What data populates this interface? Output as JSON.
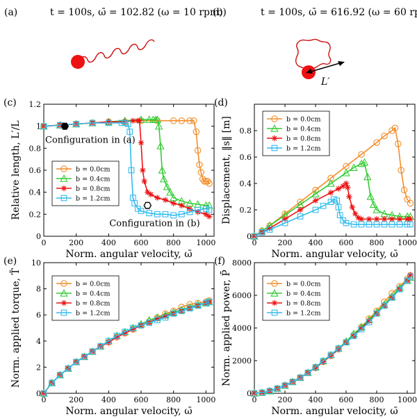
{
  "colors": {
    "b00": "#F28C28",
    "b04": "#33CC33",
    "b08": "#EE1111",
    "b12": "#33BBEE",
    "ball": "#EE1111",
    "rod": "#CC1111",
    "axis": "#000000"
  },
  "panel_a": {
    "label": "(a)",
    "caption": "t = 100s, ω̄ = 102.82 (ω = 10 rpm)"
  },
  "panel_b": {
    "label": "(b)",
    "caption": "t = 100s, ω̄ = 616.92 (ω = 60 rpm)",
    "length_label": "L′"
  },
  "chart_data": [
    {
      "id": "c",
      "type": "line",
      "panel_label": "(c)",
      "xlabel": "Norm. angular velocity, ω̄",
      "ylabel": "Relative length, L′/L",
      "xlim": [
        0,
        1050
      ],
      "ylim": [
        0,
        1.2
      ],
      "xticks": [
        0,
        200,
        400,
        600,
        800,
        1000
      ],
      "yticks": [
        0,
        0.2,
        0.4,
        0.6,
        0.8,
        1,
        1.2
      ],
      "legend_position": "left",
      "annotations": [
        {
          "text": "Configuration in (a)",
          "x": 130,
          "y": 1.0
        },
        {
          "text": "Configuration in (b)",
          "x": 640,
          "y": 0.28
        }
      ],
      "series": [
        {
          "name": "b = 0.0cm",
          "color_key": "b00",
          "marker": "circle",
          "x": [
            0,
            100,
            200,
            300,
            400,
            500,
            600,
            700,
            800,
            850,
            900,
            925,
            940,
            950,
            960,
            970,
            980,
            990,
            1000,
            1010,
            1020
          ],
          "y": [
            1.0,
            1.01,
            1.02,
            1.03,
            1.04,
            1.04,
            1.05,
            1.05,
            1.05,
            1.05,
            1.05,
            1.05,
            0.95,
            0.78,
            0.65,
            0.58,
            0.52,
            0.5,
            0.5,
            0.5,
            0.48
          ]
        },
        {
          "name": "b = 0.4cm",
          "color_key": "b04",
          "marker": "triangle",
          "x": [
            0,
            100,
            200,
            300,
            400,
            500,
            600,
            650,
            675,
            690,
            700,
            710,
            720,
            730,
            740,
            760,
            780,
            800,
            850,
            900,
            950,
            1000,
            1020
          ],
          "y": [
            1.0,
            1.01,
            1.02,
            1.03,
            1.04,
            1.05,
            1.06,
            1.06,
            1.06,
            1.06,
            1.06,
            1.0,
            0.82,
            0.6,
            0.52,
            0.45,
            0.4,
            0.35,
            0.32,
            0.3,
            0.29,
            0.28,
            0.28
          ]
        },
        {
          "name": "b = 0.8cm",
          "color_key": "b08",
          "marker": "star",
          "x": [
            0,
            100,
            200,
            300,
            400,
            500,
            550,
            580,
            590,
            600,
            610,
            620,
            640,
            660,
            700,
            750,
            800,
            850,
            900,
            950,
            1000,
            1020
          ],
          "y": [
            1.0,
            1.01,
            1.02,
            1.03,
            1.04,
            1.04,
            1.05,
            1.05,
            1.05,
            0.85,
            0.6,
            0.5,
            0.4,
            0.38,
            0.35,
            0.33,
            0.3,
            0.28,
            0.25,
            0.22,
            0.2,
            0.18
          ]
        },
        {
          "name": "b = 1.2cm",
          "color_key": "b12",
          "marker": "square",
          "x": [
            0,
            100,
            200,
            300,
            400,
            480,
            500,
            520,
            530,
            540,
            550,
            560,
            580,
            600,
            650,
            700,
            750,
            800,
            850,
            900,
            950,
            1000,
            1020
          ],
          "y": [
            1.0,
            1.01,
            1.02,
            1.03,
            1.03,
            1.03,
            1.03,
            1.02,
            0.95,
            0.6,
            0.35,
            0.3,
            0.25,
            0.23,
            0.21,
            0.2,
            0.2,
            0.19,
            0.2,
            0.22,
            0.24,
            0.25,
            0.24
          ]
        }
      ]
    },
    {
      "id": "d",
      "type": "line",
      "panel_label": "(d)",
      "xlabel": "Norm. angular velocity, ω̄",
      "ylabel": "Displacement, ‖s‖ [m]",
      "xlim": [
        0,
        1050
      ],
      "ylim": [
        0,
        1.0
      ],
      "xticks": [
        0,
        200,
        400,
        600,
        800,
        1000
      ],
      "yticks": [
        0,
        0.2,
        0.4,
        0.6,
        0.8
      ],
      "legend_position": "top-left",
      "series": [
        {
          "name": "b = 0.0cm",
          "color_key": "b00",
          "marker": "circle",
          "x": [
            0,
            50,
            100,
            200,
            300,
            400,
            500,
            600,
            700,
            800,
            850,
            900,
            920,
            940,
            960,
            980,
            1000,
            1020
          ],
          "y": [
            0,
            0.04,
            0.08,
            0.17,
            0.26,
            0.35,
            0.44,
            0.53,
            0.62,
            0.71,
            0.76,
            0.8,
            0.82,
            0.7,
            0.5,
            0.35,
            0.28,
            0.25
          ]
        },
        {
          "name": "b = 0.4cm",
          "color_key": "b04",
          "marker": "triangle",
          "x": [
            0,
            50,
            100,
            200,
            300,
            400,
            500,
            600,
            650,
            700,
            720,
            740,
            760,
            780,
            800,
            850,
            900,
            950,
            1000,
            1020
          ],
          "y": [
            0,
            0.04,
            0.08,
            0.16,
            0.24,
            0.32,
            0.4,
            0.48,
            0.52,
            0.55,
            0.56,
            0.45,
            0.3,
            0.24,
            0.2,
            0.17,
            0.16,
            0.15,
            0.15,
            0.15
          ]
        },
        {
          "name": "b = 0.8cm",
          "color_key": "b08",
          "marker": "star",
          "x": [
            0,
            50,
            100,
            200,
            300,
            400,
            500,
            550,
            580,
            600,
            610,
            620,
            640,
            660,
            680,
            700,
            750,
            800,
            850,
            900,
            950,
            1000,
            1020
          ],
          "y": [
            0,
            0.03,
            0.06,
            0.13,
            0.2,
            0.27,
            0.33,
            0.36,
            0.38,
            0.4,
            0.37,
            0.3,
            0.22,
            0.17,
            0.14,
            0.13,
            0.13,
            0.13,
            0.13,
            0.13,
            0.13,
            0.13,
            0.13
          ]
        },
        {
          "name": "b = 1.2cm",
          "color_key": "b12",
          "marker": "square",
          "x": [
            0,
            50,
            100,
            200,
            300,
            400,
            450,
            500,
            520,
            540,
            550,
            560,
            580,
            600,
            650,
            700,
            750,
            800,
            850,
            900,
            950,
            1000,
            1020
          ],
          "y": [
            0,
            0.03,
            0.05,
            0.1,
            0.15,
            0.2,
            0.23,
            0.26,
            0.28,
            0.27,
            0.22,
            0.16,
            0.12,
            0.1,
            0.09,
            0.09,
            0.09,
            0.09,
            0.09,
            0.09,
            0.09,
            0.09,
            0.09
          ]
        }
      ]
    },
    {
      "id": "e",
      "type": "line",
      "panel_label": "(e)",
      "xlabel": "Norm. angular velocity, ω̄",
      "ylabel": "Norm. applied torque, T̄",
      "xlim": [
        0,
        1050
      ],
      "ylim": [
        0,
        10
      ],
      "xticks": [
        0,
        200,
        400,
        600,
        800,
        1000
      ],
      "yticks": [
        0,
        2,
        4,
        6,
        8,
        10
      ],
      "legend_position": "top-left",
      "series": [
        {
          "name": "b = 0.0cm",
          "color_key": "b00",
          "marker": "circle",
          "x": [
            0,
            50,
            100,
            150,
            200,
            250,
            300,
            350,
            400,
            450,
            500,
            550,
            600,
            650,
            700,
            750,
            800,
            850,
            900,
            950,
            1000,
            1020
          ],
          "y": [
            0,
            0.8,
            1.4,
            1.9,
            2.4,
            2.8,
            3.2,
            3.6,
            3.9,
            4.3,
            4.6,
            4.9,
            5.2,
            5.5,
            5.8,
            6.1,
            6.3,
            6.6,
            6.8,
            6.9,
            7.0,
            7.1
          ]
        },
        {
          "name": "b = 0.4cm",
          "color_key": "b04",
          "marker": "triangle",
          "x": [
            0,
            50,
            100,
            150,
            200,
            250,
            300,
            350,
            400,
            450,
            500,
            550,
            600,
            650,
            700,
            750,
            800,
            850,
            900,
            950,
            1000,
            1020
          ],
          "y": [
            0,
            0.8,
            1.4,
            1.9,
            2.4,
            2.8,
            3.2,
            3.6,
            4.0,
            4.4,
            4.7,
            5.0,
            5.3,
            5.6,
            5.8,
            6.0,
            6.2,
            6.4,
            6.6,
            6.8,
            6.9,
            7.0
          ]
        },
        {
          "name": "b = 0.8cm",
          "color_key": "b08",
          "marker": "star",
          "x": [
            0,
            50,
            100,
            150,
            200,
            250,
            300,
            350,
            400,
            450,
            500,
            550,
            600,
            650,
            700,
            750,
            800,
            850,
            900,
            950,
            1000,
            1020
          ],
          "y": [
            0,
            0.8,
            1.4,
            1.9,
            2.4,
            2.8,
            3.2,
            3.6,
            3.9,
            4.3,
            4.6,
            4.9,
            5.2,
            5.4,
            5.7,
            5.9,
            6.1,
            6.3,
            6.5,
            6.7,
            6.9,
            7.0
          ]
        },
        {
          "name": "b = 1.2cm",
          "color_key": "b12",
          "marker": "square",
          "x": [
            0,
            50,
            100,
            150,
            200,
            250,
            300,
            350,
            400,
            450,
            500,
            550,
            600,
            650,
            700,
            750,
            800,
            850,
            900,
            950,
            1000,
            1020
          ],
          "y": [
            0,
            0.8,
            1.4,
            1.9,
            2.4,
            2.8,
            3.2,
            3.6,
            4.0,
            4.4,
            4.7,
            5.0,
            5.2,
            5.4,
            5.6,
            5.8,
            6.1,
            6.3,
            6.5,
            6.7,
            6.9,
            7.0
          ]
        }
      ]
    },
    {
      "id": "f",
      "type": "line",
      "panel_label": "(f)",
      "xlabel": "Norm. angular velocity, ω̄",
      "ylabel": "Norm. applied power, P̄",
      "xlim": [
        0,
        1050
      ],
      "ylim": [
        0,
        8000
      ],
      "xticks": [
        0,
        200,
        400,
        600,
        800,
        1000
      ],
      "yticks": [
        0,
        2000,
        4000,
        6000,
        8000
      ],
      "legend_position": "top-left",
      "series": [
        {
          "name": "b = 0.0cm",
          "color_key": "b00",
          "marker": "circle",
          "x": [
            0,
            50,
            100,
            150,
            200,
            250,
            300,
            350,
            400,
            450,
            500,
            550,
            600,
            650,
            700,
            750,
            800,
            850,
            900,
            950,
            1000,
            1020
          ],
          "y": [
            0,
            40,
            140,
            290,
            480,
            700,
            960,
            1260,
            1560,
            1930,
            2300,
            2700,
            3120,
            3570,
            4060,
            4570,
            5040,
            5600,
            6120,
            6550,
            7000,
            7200
          ]
        },
        {
          "name": "b = 0.4cm",
          "color_key": "b04",
          "marker": "triangle",
          "x": [
            0,
            50,
            100,
            150,
            200,
            250,
            300,
            350,
            400,
            450,
            500,
            550,
            600,
            650,
            700,
            750,
            800,
            850,
            900,
            950,
            1000,
            1020
          ],
          "y": [
            0,
            40,
            140,
            290,
            480,
            700,
            960,
            1260,
            1600,
            1980,
            2350,
            2750,
            3180,
            3640,
            4060,
            4500,
            4960,
            5440,
            5940,
            6460,
            6900,
            7100
          ]
        },
        {
          "name": "b = 0.8cm",
          "color_key": "b08",
          "marker": "star",
          "x": [
            0,
            50,
            100,
            150,
            200,
            250,
            300,
            350,
            400,
            450,
            500,
            550,
            600,
            650,
            700,
            750,
            800,
            850,
            900,
            950,
            1000,
            1020
          ],
          "y": [
            0,
            40,
            140,
            290,
            480,
            700,
            960,
            1260,
            1560,
            1930,
            2300,
            2700,
            3120,
            3510,
            3990,
            4430,
            4880,
            5360,
            5850,
            6370,
            6900,
            7250
          ]
        },
        {
          "name": "b = 1.2cm",
          "color_key": "b12",
          "marker": "square",
          "x": [
            0,
            50,
            100,
            150,
            200,
            250,
            300,
            350,
            400,
            450,
            500,
            550,
            600,
            650,
            700,
            750,
            800,
            850,
            900,
            950,
            1000,
            1020
          ],
          "y": [
            0,
            40,
            140,
            290,
            480,
            700,
            960,
            1260,
            1600,
            1980,
            2350,
            2750,
            3120,
            3510,
            3920,
            4350,
            4880,
            5360,
            5850,
            6370,
            6900,
            7150
          ]
        }
      ]
    }
  ]
}
